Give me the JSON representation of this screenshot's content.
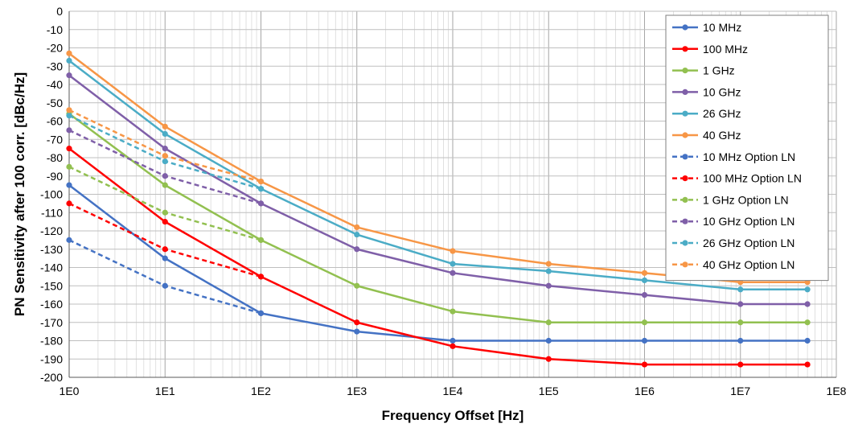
{
  "chart_data": {
    "type": "line",
    "title": "",
    "xlabel": "Frequency Offset [Hz]",
    "ylabel": "PN Sensitivity after 100 corr. [dBc/Hz]",
    "x_scale": "log",
    "xlim": [
      1,
      100000000
    ],
    "ylim": [
      -200,
      0
    ],
    "x_ticks": [
      "1E0",
      "1E1",
      "1E2",
      "1E3",
      "1E4",
      "1E5",
      "1E6",
      "1E7",
      "1E8"
    ],
    "y_ticks": [
      "0",
      "-10",
      "-20",
      "-30",
      "-40",
      "-50",
      "-60",
      "-70",
      "-80",
      "-90",
      "-100",
      "-110",
      "-120",
      "-130",
      "-140",
      "-150",
      "-160",
      "-170",
      "-180",
      "-190",
      "-200"
    ],
    "grid": true,
    "legend_position": "top-right",
    "series": [
      {
        "name": "10 MHz",
        "color": "#4472c4",
        "dash": false,
        "x": [
          1,
          10,
          100,
          1000,
          10000,
          100000,
          1000000,
          10000000,
          50000000
        ],
        "y": [
          -95,
          -135,
          -165,
          -175,
          -180,
          -180,
          -180,
          -180,
          -180
        ]
      },
      {
        "name": "100 MHz",
        "color": "#ff0000",
        "dash": false,
        "x": [
          1,
          10,
          100,
          1000,
          10000,
          100000,
          1000000,
          10000000,
          50000000
        ],
        "y": [
          -75,
          -115,
          -145,
          -170,
          -183,
          -190,
          -193,
          -193,
          -193
        ]
      },
      {
        "name": "1 GHz",
        "color": "#92c050",
        "dash": false,
        "x": [
          1,
          10,
          100,
          1000,
          10000,
          100000,
          1000000,
          10000000,
          50000000
        ],
        "y": [
          -56,
          -95,
          -125,
          -150,
          -164,
          -170,
          -170,
          -170,
          -170
        ]
      },
      {
        "name": "10 GHz",
        "color": "#7f5fa8",
        "dash": false,
        "x": [
          1,
          10,
          100,
          1000,
          10000,
          100000,
          1000000,
          10000000,
          50000000
        ],
        "y": [
          -35,
          -75,
          -105,
          -130,
          -143,
          -150,
          -155,
          -160,
          -160
        ]
      },
      {
        "name": "26 GHz",
        "color": "#4bacc6",
        "dash": false,
        "x": [
          1,
          10,
          100,
          1000,
          10000,
          100000,
          1000000,
          10000000,
          50000000
        ],
        "y": [
          -27,
          -67,
          -97,
          -122,
          -138,
          -142,
          -147,
          -152,
          -152
        ]
      },
      {
        "name": "40 GHz",
        "color": "#f79646",
        "dash": false,
        "x": [
          1,
          10,
          100,
          1000,
          10000,
          100000,
          1000000,
          10000000,
          50000000
        ],
        "y": [
          -23,
          -63,
          -93,
          -118,
          -131,
          -138,
          -143,
          -148,
          -148
        ]
      },
      {
        "name": "10 MHz Option LN",
        "color": "#4472c4",
        "dash": true,
        "x": [
          1,
          10,
          100
        ],
        "y": [
          -125,
          -150,
          -165
        ]
      },
      {
        "name": "100 MHz Option LN",
        "color": "#ff0000",
        "dash": true,
        "x": [
          1,
          10,
          100
        ],
        "y": [
          -105,
          -130,
          -145
        ]
      },
      {
        "name": "1 GHz Option LN",
        "color": "#92c050",
        "dash": true,
        "x": [
          1,
          10,
          100
        ],
        "y": [
          -85,
          -110,
          -125
        ]
      },
      {
        "name": "10 GHz Option LN",
        "color": "#7f5fa8",
        "dash": true,
        "x": [
          1,
          10,
          100
        ],
        "y": [
          -65,
          -90,
          -105
        ]
      },
      {
        "name": "26 GHz Option LN",
        "color": "#4bacc6",
        "dash": true,
        "x": [
          1,
          10,
          100
        ],
        "y": [
          -57,
          -82,
          -97
        ]
      },
      {
        "name": "40 GHz Option LN",
        "color": "#f79646",
        "dash": true,
        "x": [
          1,
          10,
          100
        ],
        "y": [
          -54,
          -79,
          -93
        ]
      }
    ]
  }
}
